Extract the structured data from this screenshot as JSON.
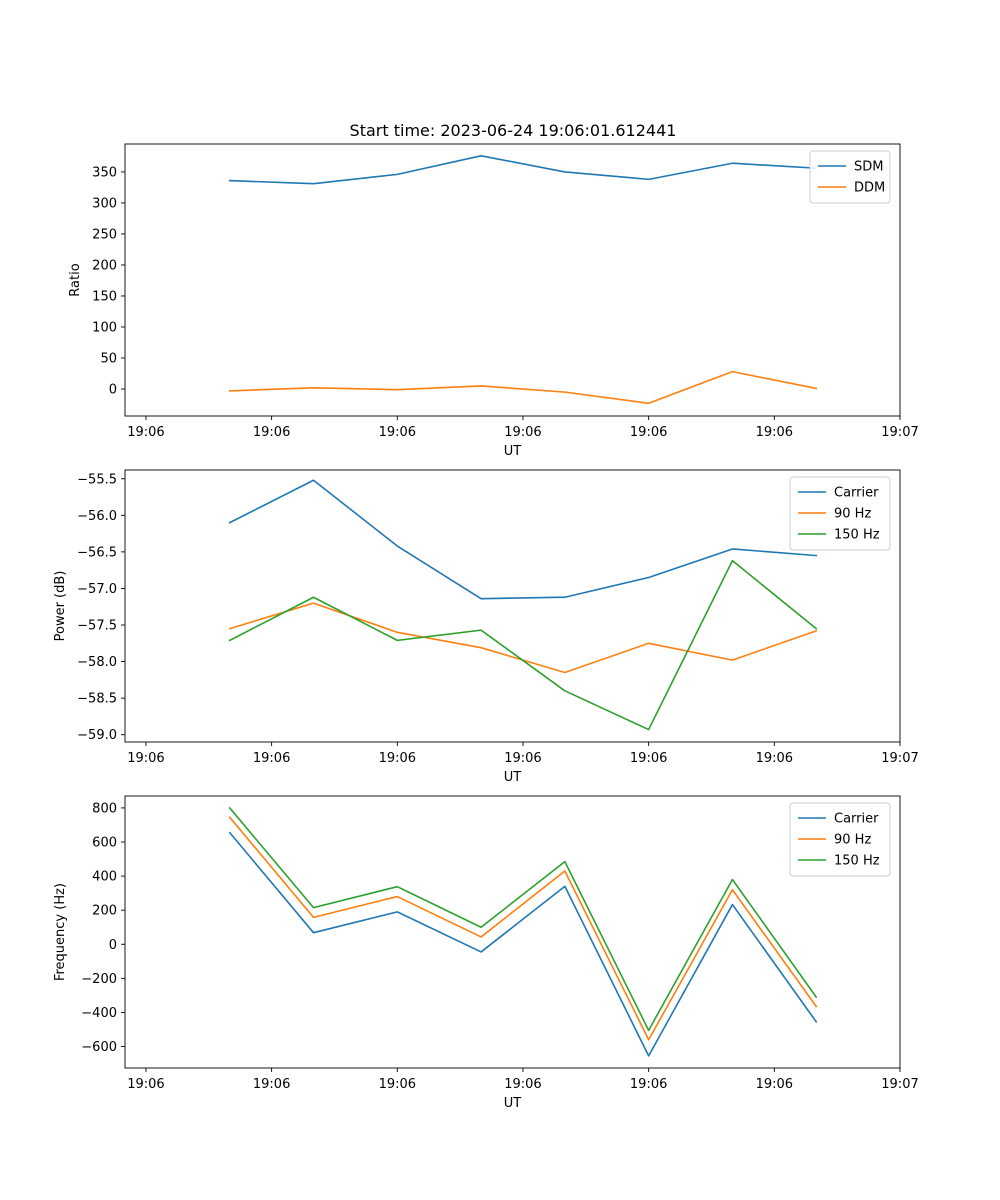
{
  "figure": {
    "title": "Start time: 2023-06-24 19:06:01.612441"
  },
  "colors": {
    "blue": "#1f77b4",
    "orange": "#ff7f0e",
    "green": "#2ca02c"
  },
  "chart_data": [
    {
      "type": "line",
      "title": "Start time: 2023-06-24 19:06:01.612441",
      "xlabel": "UT",
      "ylabel": "Ratio",
      "x": [
        1,
        2,
        3,
        4,
        5,
        6,
        7,
        8
      ],
      "xlim": [
        -0.25,
        9
      ],
      "x_ticks": [
        0,
        1.5,
        3,
        4.5,
        6,
        7.5,
        9
      ],
      "x_tick_labels": [
        "19:06",
        "19:06",
        "19:06",
        "19:06",
        "19:06",
        "19:06",
        "19:07"
      ],
      "ylim": [
        -43.5,
        395
      ],
      "y_ticks": [
        0,
        50,
        100,
        150,
        200,
        250,
        300,
        350
      ],
      "y_tick_labels": [
        "0",
        "50",
        "100",
        "150",
        "200",
        "250",
        "300",
        "350"
      ],
      "legend": "top-right",
      "grid": false,
      "series": [
        {
          "name": "SDM",
          "color": "#1f77b4",
          "values": [
            336,
            331,
            346,
            376,
            350,
            338,
            364,
            356
          ]
        },
        {
          "name": "DDM",
          "color": "#ff7f0e",
          "values": [
            -3,
            2,
            -1,
            5,
            -5,
            -23,
            28,
            1
          ]
        }
      ]
    },
    {
      "type": "line",
      "title": "",
      "xlabel": "UT",
      "ylabel": "Power (dB)",
      "x": [
        1,
        2,
        3,
        4,
        5,
        6,
        7,
        8
      ],
      "xlim": [
        -0.25,
        9
      ],
      "x_ticks": [
        0,
        1.5,
        3,
        4.5,
        6,
        7.5,
        9
      ],
      "x_tick_labels": [
        "19:06",
        "19:06",
        "19:06",
        "19:06",
        "19:06",
        "19:06",
        "19:07"
      ],
      "ylim": [
        -59.1,
        -55.38
      ],
      "y_ticks": [
        -59.0,
        -58.5,
        -58.0,
        -57.5,
        -57.0,
        -56.5,
        -56.0,
        -55.5
      ],
      "y_tick_labels": [
        "−59.0",
        "−58.5",
        "−58.0",
        "−57.5",
        "−57.0",
        "−56.5",
        "−56.0",
        "−55.5"
      ],
      "legend": "top-right",
      "grid": false,
      "series": [
        {
          "name": "Carrier",
          "color": "#1f77b4",
          "values": [
            -56.1,
            -55.52,
            -56.42,
            -57.14,
            -57.12,
            -56.85,
            -56.46,
            -56.55
          ]
        },
        {
          "name": "90 Hz",
          "color": "#ff7f0e",
          "values": [
            -57.55,
            -57.2,
            -57.6,
            -57.81,
            -58.15,
            -57.75,
            -57.98,
            -57.58
          ]
        },
        {
          "name": "150 Hz",
          "color": "#2ca02c",
          "values": [
            -57.71,
            -57.12,
            -57.71,
            -57.57,
            -58.4,
            -58.93,
            -56.62,
            -57.55
          ]
        }
      ]
    },
    {
      "type": "line",
      "title": "",
      "xlabel": "UT",
      "ylabel": "Frequency (Hz)",
      "x": [
        1,
        2,
        3,
        4,
        5,
        6,
        7,
        8
      ],
      "xlim": [
        -0.25,
        9
      ],
      "x_ticks": [
        0,
        1.5,
        3,
        4.5,
        6,
        7.5,
        9
      ],
      "x_tick_labels": [
        "19:06",
        "19:06",
        "19:06",
        "19:06",
        "19:06",
        "19:06",
        "19:07"
      ],
      "ylim": [
        -726,
        870
      ],
      "y_ticks": [
        -600,
        -400,
        -200,
        0,
        200,
        400,
        600,
        800
      ],
      "y_tick_labels": [
        "−600",
        "−400",
        "−200",
        "0",
        "200",
        "400",
        "600",
        "800"
      ],
      "legend": "top-right",
      "grid": false,
      "series": [
        {
          "name": "Carrier",
          "color": "#1f77b4",
          "values": [
            655,
            68,
            190,
            -45,
            340,
            -655,
            233,
            -455
          ]
        },
        {
          "name": "90 Hz",
          "color": "#ff7f0e",
          "values": [
            745,
            158,
            280,
            43,
            430,
            -560,
            320,
            -365
          ]
        },
        {
          "name": "150 Hz",
          "color": "#2ca02c",
          "values": [
            800,
            215,
            338,
            100,
            485,
            -505,
            380,
            -310
          ]
        }
      ]
    }
  ]
}
